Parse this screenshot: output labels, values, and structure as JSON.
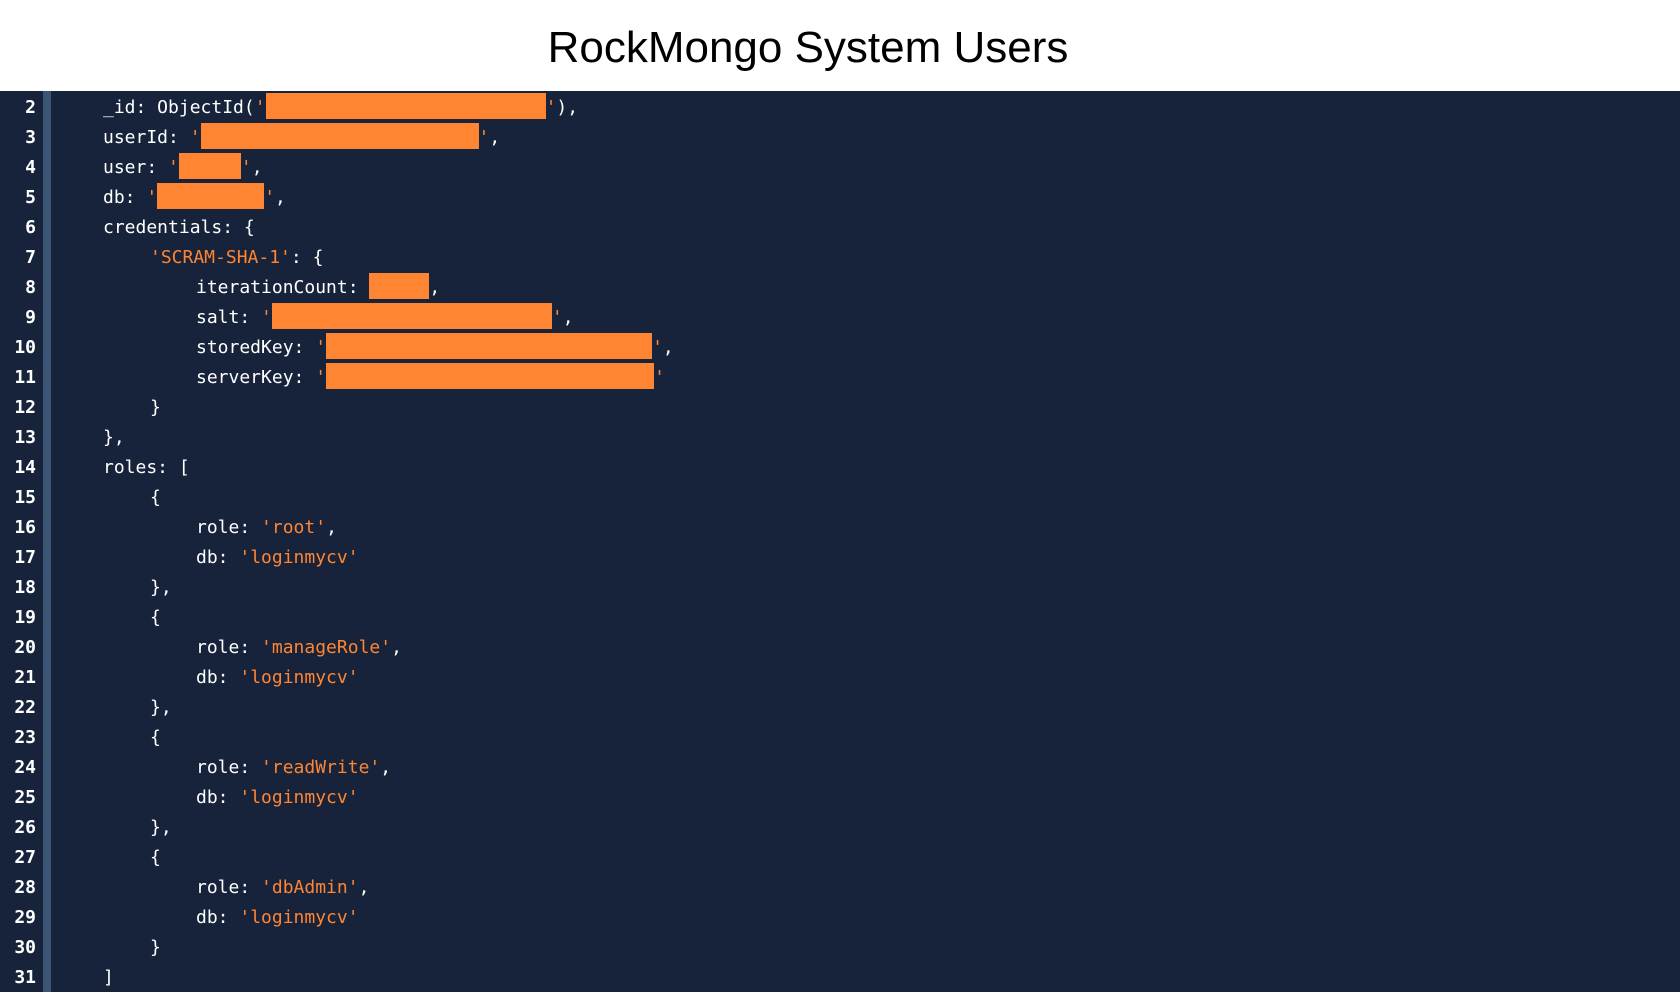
{
  "title": "RockMongo System Users",
  "colors": {
    "background": "#16233a",
    "gutter_border": "#3b5674",
    "text": "#ffffff",
    "string": "#ff8533",
    "redaction": "#ff8533"
  },
  "lines": [
    {
      "n": "2",
      "indent": 0,
      "parts": [
        {
          "t": "_id: ObjectId("
        },
        {
          "t": "'",
          "c": "str"
        },
        {
          "redact": 280
        },
        {
          "t": "'",
          "c": "str"
        },
        {
          "t": "),"
        }
      ]
    },
    {
      "n": "3",
      "indent": 0,
      "parts": [
        {
          "t": "userId: "
        },
        {
          "t": "'",
          "c": "str"
        },
        {
          "redact": 278
        },
        {
          "t": "'",
          "c": "str"
        },
        {
          "t": ","
        }
      ]
    },
    {
      "n": "4",
      "indent": 0,
      "parts": [
        {
          "t": "user: "
        },
        {
          "t": "'",
          "c": "str"
        },
        {
          "redact": 62
        },
        {
          "t": "'",
          "c": "str"
        },
        {
          "t": ","
        }
      ]
    },
    {
      "n": "5",
      "indent": 0,
      "parts": [
        {
          "t": "db: "
        },
        {
          "t": "'",
          "c": "str"
        },
        {
          "redact": 107
        },
        {
          "t": "'",
          "c": "str"
        },
        {
          "t": ","
        }
      ]
    },
    {
      "n": "6",
      "indent": 0,
      "parts": [
        {
          "t": "credentials: {"
        }
      ]
    },
    {
      "n": "7",
      "indent": 1,
      "parts": [
        {
          "t": "'SCRAM-SHA-1'",
          "c": "str"
        },
        {
          "t": ": {"
        }
      ]
    },
    {
      "n": "8",
      "indent": 2,
      "parts": [
        {
          "t": "iterationCount: "
        },
        {
          "redact": 60
        },
        {
          "t": ","
        }
      ]
    },
    {
      "n": "9",
      "indent": 2,
      "parts": [
        {
          "t": "salt: "
        },
        {
          "t": "'",
          "c": "str"
        },
        {
          "redact": 280
        },
        {
          "t": "'",
          "c": "str"
        },
        {
          "t": ","
        }
      ]
    },
    {
      "n": "10",
      "indent": 2,
      "parts": [
        {
          "t": "storedKey: "
        },
        {
          "t": "'",
          "c": "str"
        },
        {
          "redact": 326
        },
        {
          "t": "'",
          "c": "str"
        },
        {
          "t": ","
        }
      ]
    },
    {
      "n": "11",
      "indent": 2,
      "parts": [
        {
          "t": "serverKey: "
        },
        {
          "t": "'",
          "c": "str"
        },
        {
          "redact": 328
        },
        {
          "t": "'",
          "c": "str"
        }
      ]
    },
    {
      "n": "12",
      "indent": 1,
      "parts": [
        {
          "t": "}"
        }
      ]
    },
    {
      "n": "13",
      "indent": 0,
      "parts": [
        {
          "t": "},"
        }
      ]
    },
    {
      "n": "14",
      "indent": 0,
      "parts": [
        {
          "t": "roles: ["
        }
      ]
    },
    {
      "n": "15",
      "indent": 1,
      "parts": [
        {
          "t": "{"
        }
      ]
    },
    {
      "n": "16",
      "indent": 2,
      "parts": [
        {
          "t": "role: "
        },
        {
          "t": "'root'",
          "c": "str"
        },
        {
          "t": ","
        }
      ]
    },
    {
      "n": "17",
      "indent": 2,
      "parts": [
        {
          "t": "db: "
        },
        {
          "t": "'loginmycv'",
          "c": "str"
        }
      ]
    },
    {
      "n": "18",
      "indent": 1,
      "parts": [
        {
          "t": "},"
        }
      ]
    },
    {
      "n": "19",
      "indent": 1,
      "parts": [
        {
          "t": "{"
        }
      ]
    },
    {
      "n": "20",
      "indent": 2,
      "parts": [
        {
          "t": "role: "
        },
        {
          "t": "'manageRole'",
          "c": "str"
        },
        {
          "t": ","
        }
      ]
    },
    {
      "n": "21",
      "indent": 2,
      "parts": [
        {
          "t": "db: "
        },
        {
          "t": "'loginmycv'",
          "c": "str"
        }
      ]
    },
    {
      "n": "22",
      "indent": 1,
      "parts": [
        {
          "t": "},"
        }
      ]
    },
    {
      "n": "23",
      "indent": 1,
      "parts": [
        {
          "t": "{"
        }
      ]
    },
    {
      "n": "24",
      "indent": 2,
      "parts": [
        {
          "t": "role: "
        },
        {
          "t": "'readWrite'",
          "c": "str"
        },
        {
          "t": ","
        }
      ]
    },
    {
      "n": "25",
      "indent": 2,
      "parts": [
        {
          "t": "db: "
        },
        {
          "t": "'loginmycv'",
          "c": "str"
        }
      ]
    },
    {
      "n": "26",
      "indent": 1,
      "parts": [
        {
          "t": "},"
        }
      ]
    },
    {
      "n": "27",
      "indent": 1,
      "parts": [
        {
          "t": "{"
        }
      ]
    },
    {
      "n": "28",
      "indent": 2,
      "parts": [
        {
          "t": "role: "
        },
        {
          "t": "'dbAdmin'",
          "c": "str"
        },
        {
          "t": ","
        }
      ]
    },
    {
      "n": "29",
      "indent": 2,
      "parts": [
        {
          "t": "db: "
        },
        {
          "t": "'loginmycv'",
          "c": "str"
        }
      ]
    },
    {
      "n": "30",
      "indent": 1,
      "parts": [
        {
          "t": "}"
        }
      ]
    },
    {
      "n": "31",
      "indent": 0,
      "parts": [
        {
          "t": "]"
        }
      ]
    }
  ]
}
